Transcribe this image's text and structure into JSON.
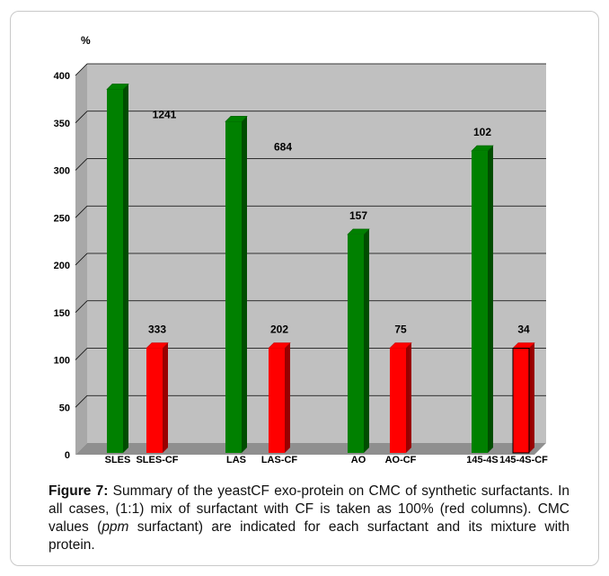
{
  "chart_data": {
    "type": "bar",
    "ylabel": "%",
    "ylim": [
      0,
      400
    ],
    "y_ticks": [
      0,
      50,
      100,
      150,
      200,
      250,
      300,
      350,
      400
    ],
    "y_tick_labels": [
      "0",
      "50",
      "100",
      "150",
      "200",
      "250",
      "300",
      "350",
      "400"
    ],
    "categories": [
      "SLES",
      "SLES-CF",
      "LAS",
      "LAS-CF",
      "AO",
      "AO-CF",
      "145-4S",
      "145-4S-CF"
    ],
    "values": [
      373,
      100,
      339,
      100,
      220,
      100,
      308,
      100
    ],
    "data_labels": [
      "1241",
      "333",
      "684",
      "202",
      "157",
      "75",
      "102",
      "34"
    ],
    "colors": [
      "#008000",
      "#ff0000",
      "#008000",
      "#ff0000",
      "#008000",
      "#ff0000",
      "#008000",
      "#ff0000"
    ],
    "grid": true,
    "background": "#c0c0c0"
  },
  "caption": {
    "lead": "Figure 7:",
    "part1": " Summary of the yeastCF exo-protein on CMC of synthetic surfactants. In all cases, (1:1) mix of surfactant with CF is taken as 100% (red columns). CMC values (",
    "italic": "ppm",
    "part2": " surfactant) are indicated for each surfactant and its mixture with protein."
  }
}
